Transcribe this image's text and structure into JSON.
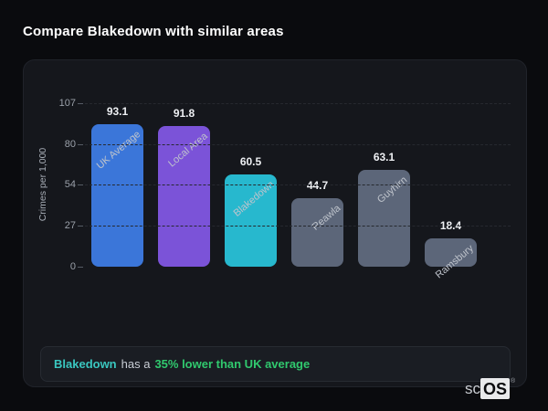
{
  "page": {
    "title": "Compare Blakedown with similar areas"
  },
  "chart_data": {
    "type": "bar",
    "title": "Compare Blakedown with similar areas",
    "xlabel": "",
    "ylabel": "Crimes per 1,000",
    "categories": [
      "UK Average",
      "Local Area",
      "Blakedown",
      "Reawla",
      "Guyhirn",
      "Ramsbury"
    ],
    "values": [
      93.1,
      91.8,
      60.5,
      44.7,
      63.1,
      18.4
    ],
    "value_labels": [
      "93.1",
      "91.8",
      "60.5",
      "44.7",
      "63.1",
      "18.4"
    ],
    "bar_colors": [
      "#3b76d9",
      "#7b53d8",
      "#27b8ce",
      "#5c6679",
      "#5c6679",
      "#5c6679"
    ],
    "yticks": [
      0,
      27,
      54,
      80,
      107
    ],
    "ylim": [
      0,
      107
    ],
    "grid": "horizontal-dashed",
    "legend": "none"
  },
  "note": {
    "highlight_area": "Blakedown",
    "connector": "has a",
    "stat": "35% lower than UK average"
  },
  "logo": {
    "prefix": "sc",
    "box": "OS",
    "registered": "®"
  },
  "colors": {
    "page_bg": "#0a0b0e",
    "card_bg": "#15171c",
    "bar_blue": "#3b76d9",
    "bar_purple": "#7b53d8",
    "bar_cyan": "#27b8ce",
    "bar_slate": "#5c6679",
    "note_area_text": "#3ac7c0",
    "note_stat_text": "#30c96e",
    "value_label_text": "#eef0f3"
  }
}
